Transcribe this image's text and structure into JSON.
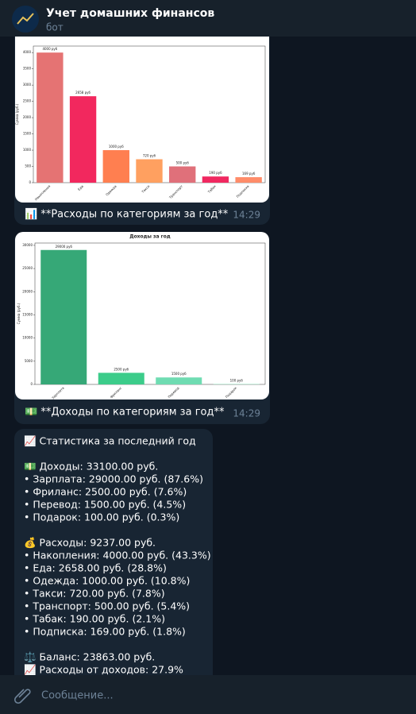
{
  "header": {
    "title": "Учет домашних финансов",
    "subtitle": "бот"
  },
  "messages": [
    {
      "chart": {
        "type": "bar",
        "ylabel": "Сумма (руб.)",
        "categories": [
          "Накопления",
          "Еда",
          "Одежда",
          "Такси",
          "Транспорт",
          "Табак",
          "Подписка"
        ],
        "values": [
          4000,
          2658,
          1000,
          720,
          500,
          190,
          169
        ],
        "value_labels": [
          "4000 руб",
          "2658 руб",
          "1000 руб",
          "720 руб",
          "500 руб",
          "190 руб",
          "169 руб"
        ],
        "colors": [
          "#e57373",
          "#f2285e",
          "#ff7f50",
          "#ffa060",
          "#e0707a",
          "#f02860",
          "#ff8c69"
        ],
        "ylim": [
          0,
          4200
        ],
        "yticks": [
          0,
          500,
          1000,
          1500,
          2000,
          2500,
          3000,
          3500,
          4000
        ]
      },
      "caption": "📊 **Расходы по категориям за год**",
      "time": "14:29"
    },
    {
      "chart": {
        "type": "bar",
        "title": "Доходы за год",
        "ylabel": "Сумма (руб.)",
        "categories": [
          "Зарплата",
          "Фриланс",
          "Перевод",
          "Подарок"
        ],
        "values": [
          29000,
          2500,
          1500,
          100
        ],
        "value_labels": [
          "29000 руб",
          "2500 руб",
          "1500 руб",
          "100 руб"
        ],
        "colors": [
          "#36a877",
          "#3ccc8a",
          "#6fdcb2",
          "#a2e8cb"
        ],
        "ylim": [
          0,
          30500
        ],
        "yticks": [
          0,
          5000,
          10000,
          15000,
          20000,
          25000,
          30000
        ]
      },
      "caption": "💵 **Доходы по категориям за год**",
      "time": "14:29"
    },
    {
      "blocks": [
        [
          "📈 Статистика за последний год"
        ],
        [
          "💵 Доходы: 33100.00 руб.",
          "• Зарплата: 29000.00 руб. (87.6%)",
          "• Фриланс: 2500.00 руб. (7.6%)",
          "• Перевод: 1500.00 руб. (4.5%)",
          "• Подарок: 100.00 руб. (0.3%)"
        ],
        [
          "💰 Расходы: 9237.00 руб.",
          "• Накопления: 4000.00 руб. (43.3%)",
          "• Еда: 2658.00 руб. (28.8%)",
          "• Одежда: 1000.00 руб. (10.8%)",
          "• Такси: 720.00 руб. (7.8%)",
          "• Транспорт: 500.00 руб. (5.4%)",
          "• Табак: 190.00 руб. (2.1%)",
          "• Подписка: 169.00 руб. (1.8%)"
        ],
        [
          "⚖️ Баланс: 23863.00 руб.",
          "📈 Расходы от доходов: 27.9%"
        ]
      ]
    }
  ],
  "input": {
    "placeholder": "Сообщение..."
  }
}
